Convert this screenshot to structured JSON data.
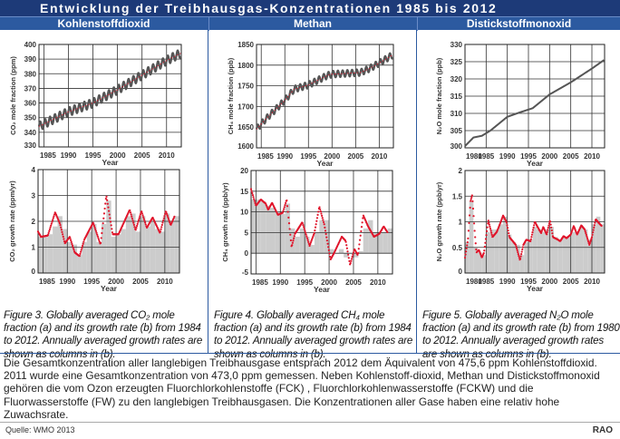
{
  "title": "Entwicklung der Treibhausgas-Konzentrationen 1985 bis 2012",
  "columns": [
    "Kohlenstoffdioxid",
    "Methan",
    "Distickstoffmonoxid"
  ],
  "captions": [
    "Figure 3. Globally averaged CO₂ mole fraction (a) and its growth rate (b) from 1984 to 2012. Annually averaged growth rates are shown as columns in (b).",
    "Figure 4. Globally averaged CH₄ mole fraction (a) and its growth rate (b) from 1984 to 2012. Annually averaged growth rates are shown as columns in (b).",
    "Figure 5. Globally averaged N₂O mole fraction (a) and its growth rate (b) from 1980 to 2012. Annually averaged growth rates are shown as columns in (b)."
  ],
  "body_text": "Die Gesamtkonzentration aller langlebigen Treibhausgase entsprach 2012 dem Äquivalent von 475,6 ppm Kohlenstoffdioxid. 2011 wurde eine Gesamtkonzentration von 473,0 ppm gemessen. Neben Kohlenstoff-dioxid, Methan und Distickstoffmonoxid gehören die vom Ozon erzeugten Fluorchlorkohlenstoffe (FCK) , Fluorchlorkohlenwasserstoffe (FCKW) und die Fluorwasserstoffe (FW) zu den langlebigen Treibhausgasen. Die Konzentrationen aller Gase haben eine relativ hohe Zuwachsrate.",
  "source": "Quelle: WMO 2013",
  "logo": "RAO",
  "colors": {
    "title_bg": "#1d3a78",
    "header_bg": "#2c5aa0",
    "curve": "#e0142a",
    "bars": "#cccccc",
    "trace": "#555555"
  },
  "chart_data": [
    {
      "type": "line",
      "name": "co2-mole-fraction",
      "xlabel": "Year",
      "ylabel": "CO₂ mole fraction (ppm)",
      "xlim": [
        1984,
        2013
      ],
      "ylim": [
        330,
        400
      ],
      "xticks": [
        1985,
        1990,
        1995,
        2000,
        2005,
        2010
      ],
      "yticks": [
        330,
        340,
        350,
        360,
        370,
        380,
        390,
        400
      ],
      "grid": true,
      "seasonal_amplitude": 3,
      "x": [
        1984,
        1990,
        1995,
        2000,
        2005,
        2010,
        2012.9
      ],
      "y": [
        344,
        354,
        360,
        369,
        379,
        389,
        394
      ]
    },
    {
      "type": "bar",
      "name": "co2-growth-rate",
      "xlabel": "Year",
      "ylabel": "CO₂ growth rate (ppm/yr)",
      "xlim": [
        1984,
        2013
      ],
      "ylim": [
        0,
        4
      ],
      "xticks": [
        1985,
        1990,
        1995,
        2000,
        2005,
        2010
      ],
      "yticks": [
        0,
        1,
        2,
        3,
        4
      ],
      "grid": true,
      "bar_start": 1984,
      "bars": [
        1.4,
        1.45,
        1.5,
        1.8,
        2.2,
        1.7,
        1.2,
        1.1,
        0.7,
        1.2,
        1.6,
        1.9,
        1.2,
        1.9,
        2.8,
        1.4,
        1.5,
        1.7,
        2.2,
        2.3,
        1.6,
        2.2,
        1.8,
        2.0,
        1.7,
        1.6,
        2.3,
        2.0,
        2.2
      ],
      "curve_x": [
        1984,
        1984.6,
        1986,
        1987.5,
        1988.5,
        1989.5,
        1990.5,
        1991.5,
        1992.5,
        1993.5,
        1995.3,
        1996.8,
        1998,
        1999.3,
        2000.5,
        2002.8,
        2004,
        2005.2,
        2006.3,
        2007.5,
        2009,
        2010.2,
        2011.2,
        2012
      ],
      "curve_y": [
        1.6,
        1.4,
        1.45,
        2.35,
        1.9,
        1.15,
        1.4,
        0.8,
        0.65,
        1.3,
        1.95,
        1.1,
        3.0,
        1.5,
        1.5,
        2.45,
        1.65,
        2.4,
        1.75,
        2.15,
        1.55,
        2.4,
        1.85,
        2.2
      ]
    },
    {
      "type": "line",
      "name": "ch4-mole-fraction",
      "xlabel": "Year",
      "ylabel": "CH₄ mole fraction (ppb)",
      "xlim": [
        1984,
        2013
      ],
      "ylim": [
        1600,
        1850
      ],
      "xticks": [
        1985,
        1990,
        1995,
        2000,
        2005,
        2010
      ],
      "yticks": [
        1600,
        1650,
        1700,
        1750,
        1800,
        1850
      ],
      "grid": true,
      "seasonal_amplitude": 8,
      "x": [
        1984,
        1986,
        1990,
        1992,
        1995,
        1999,
        2000,
        2006,
        2008,
        2010,
        2012.9
      ],
      "y": [
        1645,
        1670,
        1715,
        1742,
        1752,
        1775,
        1778,
        1782,
        1792,
        1805,
        1825
      ]
    },
    {
      "type": "bar",
      "name": "ch4-growth-rate",
      "xlabel": "Year",
      "ylabel": "CH₄ growth rate (ppb/yr)",
      "xlim": [
        1984,
        2013
      ],
      "ylim": [
        -5,
        20
      ],
      "xticks": [
        1985,
        1990,
        1995,
        2000,
        2005,
        2010
      ],
      "yticks": [
        -5,
        0,
        5,
        10,
        15,
        20
      ],
      "grid": true,
      "bar_start": 1984,
      "bars": [
        13,
        13,
        12.5,
        11.5,
        11,
        10,
        9.5,
        12,
        6,
        4,
        6,
        4,
        2,
        5,
        8,
        8,
        1,
        0,
        1,
        -1,
        0,
        -1,
        0.5,
        6,
        8,
        5,
        5,
        5,
        6
      ],
      "curve_x": [
        1984,
        1985,
        1986,
        1987,
        1987.5,
        1988.3,
        1989.5,
        1990.5,
        1991.3,
        1992.3,
        1993,
        1994.5,
        1996,
        1997,
        1998,
        1999,
        2000.3,
        2001,
        2002.6,
        2003.4,
        2004.3,
        2005.2,
        2005.9,
        2007,
        2008,
        2009.2,
        2010.3,
        2011.2,
        2012
      ],
      "curve_y": [
        15.5,
        11.5,
        13,
        12,
        10.5,
        12.2,
        9.3,
        9.8,
        13,
        1.5,
        4.7,
        7.5,
        1.8,
        5,
        11.3,
        7,
        -1.5,
        0,
        4,
        3,
        -2.8,
        1,
        -0.5,
        9.2,
        6.5,
        4,
        4.7,
        6.5,
        5
      ]
    },
    {
      "type": "line",
      "name": "n2o-mole-fraction",
      "xlabel": "Year",
      "ylabel": "N₂O mole fraction (ppb)",
      "xlim": [
        1980,
        2013
      ],
      "ylim": [
        300,
        330
      ],
      "xticks": [
        1980,
        1985,
        1990,
        1995,
        2000,
        2005,
        2010
      ],
      "yticks": [
        300,
        305,
        310,
        315,
        320,
        325,
        330
      ],
      "grid": true,
      "seasonal_amplitude": 0,
      "x": [
        1980,
        1982,
        1984,
        1986,
        1990,
        1993,
        1996,
        2000,
        2005,
        2010,
        2012.9
      ],
      "y": [
        300.5,
        303,
        303.5,
        305,
        309,
        310.3,
        311.5,
        315.5,
        319,
        323,
        325.5
      ]
    },
    {
      "type": "bar",
      "name": "n2o-growth-rate",
      "xlabel": "Year",
      "ylabel": "N₂O growth rate (ppb/yr)",
      "xlim": [
        1980,
        2013
      ],
      "ylim": [
        0,
        2
      ],
      "xticks": [
        1980,
        1985,
        1990,
        1995,
        2000,
        2005,
        2010
      ],
      "yticks": [
        0,
        0.5,
        1,
        1.5,
        2
      ],
      "grid": true,
      "bar_start": 1980,
      "bars": [
        0.6,
        1.4,
        0.5,
        0.4,
        0.35,
        0.8,
        0.85,
        0.85,
        0.95,
        1.1,
        0.75,
        0.6,
        0.55,
        0.35,
        0.6,
        0.65,
        0.9,
        0.85,
        0.8,
        0.85,
        0.9,
        0.7,
        0.65,
        0.7,
        0.7,
        0.8,
        0.8,
        0.9,
        0.85,
        0.65,
        0.95,
        1.1,
        0.95
      ],
      "curve_x": [
        1980,
        1980.7,
        1981.3,
        1981.7,
        1982.3,
        1982.7,
        1983.3,
        1984,
        1984.5,
        1985.5,
        1986.5,
        1987.5,
        1988,
        1989,
        1989.8,
        1990.5,
        1991.5,
        1992,
        1993,
        1993.8,
        1994.5,
        1995.5,
        1996.5,
        1997.5,
        1998,
        1998.5,
        1999.3,
        2000.1,
        2000.8,
        2002,
        2002.5,
        2003.3,
        2004,
        2005,
        2005.7,
        2006.5,
        2007.5,
        2008.3,
        2009.4,
        2010,
        2010.9,
        2011.7,
        2012.3
      ],
      "curve_y": [
        0.3,
        0.65,
        1.4,
        1.52,
        0.8,
        0.4,
        0.45,
        0.3,
        0.4,
        1.03,
        0.7,
        0.8,
        0.9,
        1.12,
        1.0,
        0.7,
        0.6,
        0.55,
        0.25,
        0.55,
        0.65,
        0.62,
        1.0,
        0.85,
        0.78,
        0.9,
        0.75,
        1.03,
        0.7,
        0.65,
        0.62,
        0.72,
        0.68,
        0.75,
        0.92,
        0.75,
        0.93,
        0.85,
        0.55,
        0.7,
        1.05,
        0.97,
        0.92
      ]
    }
  ]
}
